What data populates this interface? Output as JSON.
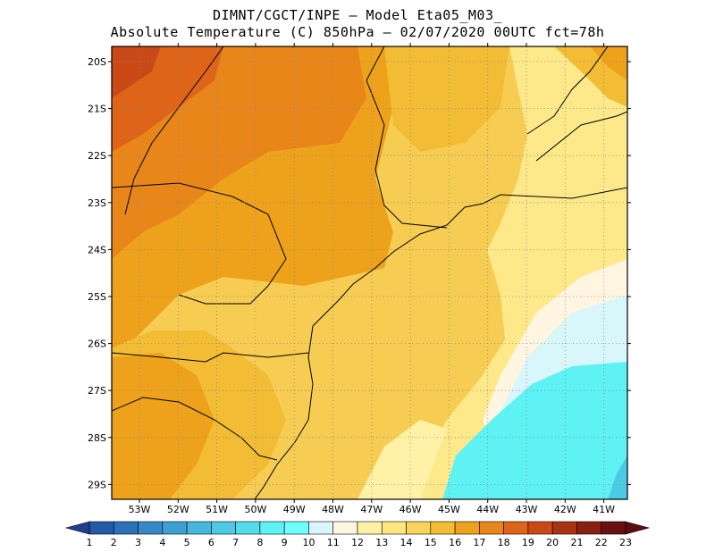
{
  "header": {
    "line1": "DIMNT/CGCT/INPE –  Model Eta05_M03_",
    "line2": "Absolute Temperature (C) 850hPa –  02/07/2020 00UTC fct=78h"
  },
  "map": {
    "lat_labels": [
      "20S",
      "21S",
      "22S",
      "23S",
      "24S",
      "25S",
      "26S",
      "27S",
      "28S",
      "29S"
    ],
    "lon_labels": [
      "53W",
      "52W",
      "51W",
      "50W",
      "49W",
      "48W",
      "47W",
      "46W",
      "45W",
      "44W",
      "43W",
      "42W",
      "41W"
    ],
    "gridlines": "dotted"
  },
  "colorbar": {
    "labels": [
      "1",
      "2",
      "3",
      "4",
      "5",
      "6",
      "7",
      "8",
      "9",
      "10",
      "11",
      "12",
      "13",
      "14",
      "15",
      "16",
      "17",
      "18",
      "19",
      "20",
      "21",
      "22",
      "23"
    ],
    "colors": [
      "#1f3f8f",
      "#2359a5",
      "#2b72b8",
      "#3589c7",
      "#3ea0d2",
      "#45b6dc",
      "#4ccae4",
      "#53dceb",
      "#5ff2f5",
      "#6effff",
      "#d9f6fb",
      "#fff5e0",
      "#fff2a6",
      "#ffe680",
      "#f9d45a",
      "#f3bc35",
      "#eea21b",
      "#e8861a",
      "#dd6418",
      "#c94a16",
      "#a83414",
      "#8a2012",
      "#6a0f12"
    ],
    "extend_left_color": "#233e8e",
    "extend_right_color": "#5e0c14"
  }
}
